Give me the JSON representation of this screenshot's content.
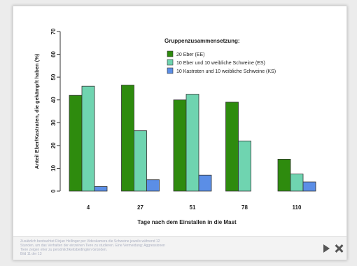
{
  "chart_data": {
    "type": "bar",
    "title": "",
    "ylabel": "Anteil Eber/Kastraten, die gekämpft haben (%)",
    "xlabel": "Tage nach dem Einstallen in die Mast",
    "ylim": [
      0,
      70
    ],
    "yticks": [
      "0",
      "10",
      "20",
      "30",
      "40",
      "50",
      "60",
      "70"
    ],
    "categories": [
      "4",
      "27",
      "51",
      "78",
      "110"
    ],
    "legend_title": "Gruppenzusammensetzung:",
    "legend_position": "top-right",
    "grid": false,
    "series": [
      {
        "name": "20 Eber (EE)",
        "color": "#2e8b0e",
        "values": [
          42,
          46.5,
          40,
          39,
          14
        ]
      },
      {
        "name": "10 Eber und 10 weibliche Schweine (ES)",
        "color": "#6fd4b0",
        "values": [
          46,
          26.5,
          42.5,
          22,
          7.5
        ]
      },
      {
        "name": "10 Kastraten und 10 weibliche Schweine (KS)",
        "color": "#5b8ee6",
        "values": [
          2,
          5,
          7,
          0,
          4
        ]
      }
    ]
  },
  "caption": {
    "lines": [
      "Zusätzlich beobachtet Ricjan Hellinger per Videokamera die Schweine jeweils während 12",
      "Stunden, um das Verhalten der einzelnen Tiere zu studieren. Eine Vermeidung: Aggressionen",
      "Tiere zeigen eher zu persönlichkeitsbedingten Gründen.",
      "Bild 11 der 13"
    ]
  },
  "controls": {
    "play_icon": "play-icon",
    "close_icon": "close-icon"
  }
}
